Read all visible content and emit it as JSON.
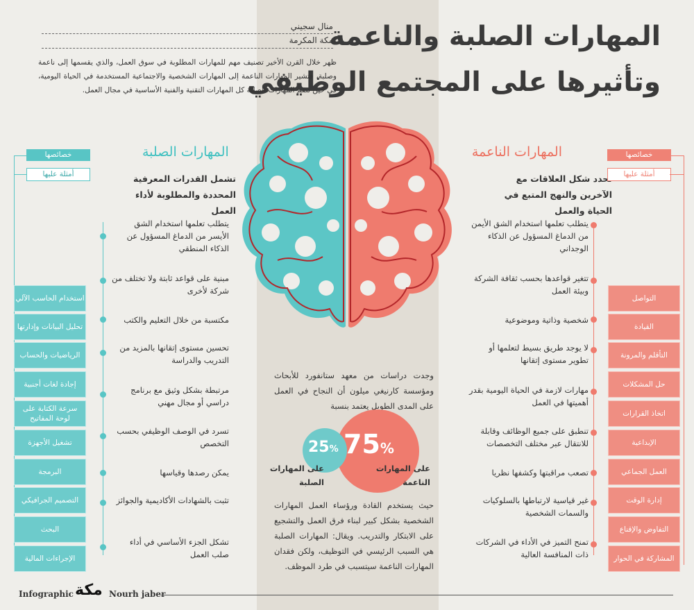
{
  "header": {
    "title_line1": "المهارات الصلبة والناعمة",
    "title_line2": "وتأثيرها على المجتمع الوظيفي",
    "author": "منال سجيني",
    "place": "مكة المكرمة",
    "intro": "ظهر خلال القرن الأخير تصنيف مهم للمهارات المطلوبة في سوق العمل، والذي يقسمها إلى ناعمة وصلبة، فتشير المهارات الناعمة إلى المهارات الشخصية والاجتماعية المستخدمة في الحياة اليومية، في حين تضم المهارات الصلبة كل المهارات التقنية والفنية الأساسية في مجال العمل."
  },
  "soft": {
    "title": "المهارات الناعمة",
    "subtitle": "تحدد شكل العلاقات مع الآخرين والنهج المتبع في الحياة والعمل",
    "tag_props": "خصائصها",
    "tag_examples": "أمثلة عليها",
    "items": [
      "يتطلب تعلمها استخدام الشق الأيمن من الدماغ المسؤول عن الذكاء الوجداني",
      "تتغير قواعدها بحسب ثقافة الشركة وبيئة العمل",
      "شخصية وذاتية وموضوعية",
      "لا يوجد طريق بسيط لتعلمها أو تطوير مستوى إتقانها",
      "مهارات لازمة في الحياة اليومية بقدر أهميتها في العمل",
      "تنطبق على جميع الوظائف وقابلة للانتقال عبر مختلف التخصصات",
      "تصعب مراقبتها وكشفها نظريا",
      "غير قياسية لارتباطها بالسلوكيات والسمات الشخصية",
      "تمنح التميز في الأداء في الشركات ذات المنافسة العالية"
    ],
    "examples": [
      "التواصل",
      "القيادة",
      "التأقلم والمرونة",
      "حل المشكلات",
      "اتخاذ القرارات",
      "الإبداعية",
      "العمل الجماعي",
      "إدارة الوقت",
      "التفاوض والإقناع",
      "المشاركة في الحوار"
    ]
  },
  "hard": {
    "title": "المهارات الصلبة",
    "subtitle": "تشمل القدرات المعرفية المحددة والمطلوبة لأداء العمل",
    "tag_props": "خصائصها",
    "tag_examples": "أمثلة عليها",
    "items": [
      "يتطلب تعلمها استخدام الشق الأيسر من الدماغ المسؤول عن الذكاء المنطقي",
      "مبنية على قواعد ثابتة ولا تختلف من شركة لأخرى",
      "مكتسبة من خلال التعليم والكتب",
      "تحسين مستوى إتقانها بالمزيد من التدريب والدراسة",
      "مرتبطة بشكل وثيق مع برنامج دراسي أو مجال مهني",
      "تسرد في الوصف الوظيفي بحسب التخصص",
      "يمكن رصدها وقياسها",
      "تثبت بالشهادات الأكاديمية والجوائز",
      "تشكل الجزء الأساسي في أداء صلب العمل"
    ],
    "examples": [
      "استخدام الحاسب الآلي",
      "تحليل البيانات وإدارتها",
      "الرياضيات والحساب",
      "إجادة لغات أجنبية",
      "سرعة الكتابة على لوحة المفاتيح",
      "تشغيل الأجهزة",
      "البرمجة",
      "التصميم الجرافيكي",
      "البحث",
      "الإجراءات المالية"
    ]
  },
  "center": {
    "study_text": "وجدت دراسات من معهد ستانفورد للأبحاث ومؤسسة كارنيغي ميلون أن النجاح في العمل على المدى الطويل يعتمد بنسبة",
    "pct_soft": "75",
    "pct_hard": "25",
    "pct_sign": "%",
    "caption_soft": "على المهارات الناعمة",
    "caption_hard": "على المهارات الصلبة",
    "bottom_text": "حيث يستخدم القادة ورؤساء العمل المهارات الشخصية بشكل كبير لبناء فرق العمل والتشجيع على الابتكار والتدريب. ويقال: المهارات الصلبة هي السبب الرئيسي في التوظيف، ولكن فقدان المهارات الناعمة سيتسبب في طرد الموظف."
  },
  "footer": {
    "left_label": "Infographic",
    "logo_text": "مكة",
    "designer": "Nourh jaber"
  },
  "colors": {
    "soft": "#ef7b6e",
    "hard": "#58c5c5",
    "brain_outline": "#b3262a"
  }
}
